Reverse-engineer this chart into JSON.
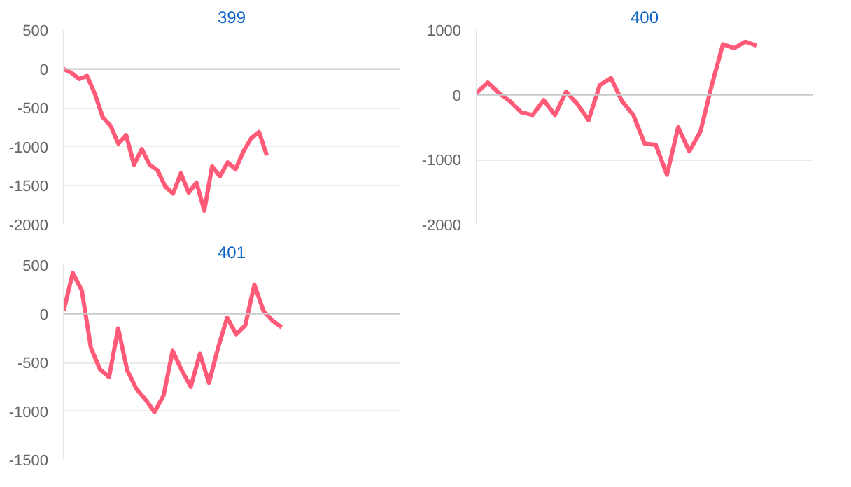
{
  "chart_data": [
    {
      "type": "line",
      "title": "399",
      "categories": [
        null,
        null,
        null,
        null,
        null,
        null,
        null,
        null,
        null,
        null,
        null,
        null,
        null,
        null,
        null,
        null,
        null,
        null,
        null,
        null,
        null,
        null,
        null,
        null,
        null,
        null,
        null,
        null,
        null,
        null,
        null,
        null,
        null,
        null,
        null,
        null,
        null,
        null,
        null,
        null,
        null,
        null,
        null,
        null
      ],
      "series": [
        {
          "color": "#ff5a78",
          "values": [
            0,
            -50,
            -130,
            -90,
            -320,
            -620,
            -730,
            -960,
            -850,
            -1230,
            -1030,
            -1230,
            -1300,
            -1510,
            -1600,
            -1340,
            -1590,
            -1460,
            -1820,
            -1250,
            -1380,
            -1200,
            -1290,
            -1060,
            -890,
            -810,
            -1110,
            null,
            null,
            null,
            null,
            null,
            null,
            null,
            null,
            null,
            null,
            null,
            null,
            null,
            null,
            null,
            null,
            null
          ]
        }
      ],
      "ylim": [
        -2000,
        500
      ],
      "yticks": [
        -2000,
        -1500,
        -1000,
        -500,
        0,
        500
      ],
      "grid": "y",
      "tick_labels": "y",
      "marker": "none",
      "line_style": "solid"
    },
    {
      "type": "line",
      "title": "400",
      "categories": [
        null,
        null,
        null,
        null,
        null,
        null,
        null,
        null,
        null,
        null,
        null,
        null,
        null,
        null,
        null,
        null,
        null,
        null,
        null,
        null,
        null,
        null,
        null,
        null,
        null,
        null,
        null,
        null,
        null,
        null,
        null
      ],
      "series": [
        {
          "color": "#ff5a78",
          "values": [
            30,
            190,
            30,
            -100,
            -270,
            -310,
            -80,
            -310,
            50,
            -140,
            -390,
            150,
            260,
            -100,
            -310,
            -750,
            -770,
            -1230,
            -500,
            -870,
            -560,
            150,
            780,
            720,
            820,
            760,
            null,
            null,
            null,
            null,
            null
          ]
        }
      ],
      "ylim": [
        -2000,
        1000
      ],
      "yticks": [
        -2000,
        -1000,
        0,
        1000
      ],
      "grid": "y",
      "tick_labels": "y",
      "marker": "none",
      "line_style": "solid"
    },
    {
      "type": "line",
      "title": "401",
      "categories": [
        null,
        null,
        null,
        null,
        null,
        null,
        null,
        null,
        null,
        null,
        null,
        null,
        null,
        null,
        null,
        null,
        null,
        null,
        null,
        null,
        null,
        null,
        null,
        null,
        null,
        null,
        null,
        null,
        null,
        null,
        null,
        null,
        null,
        null,
        null,
        null,
        null,
        null
      ],
      "series": [
        {
          "color": "#ff5a78",
          "values": [
            30,
            420,
            240,
            -350,
            -570,
            -650,
            -150,
            -580,
            -770,
            -880,
            -1010,
            -840,
            -380,
            -580,
            -750,
            -410,
            -710,
            -350,
            -40,
            -210,
            -120,
            300,
            30,
            -70,
            -140,
            null,
            null,
            null,
            null,
            null,
            null,
            null,
            null,
            null,
            null,
            null,
            null,
            null
          ]
        }
      ],
      "ylim": [
        -1500,
        500
      ],
      "yticks": [
        -1500,
        -1000,
        -500,
        0,
        500
      ],
      "grid": "y",
      "tick_labels": "y",
      "marker": "none",
      "line_style": "solid"
    }
  ]
}
